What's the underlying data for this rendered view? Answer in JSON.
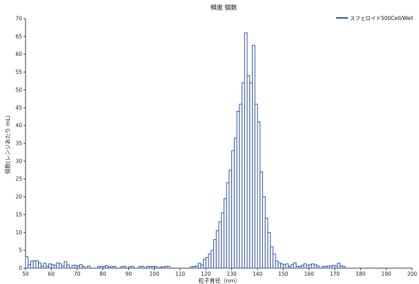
{
  "chart_data": {
    "type": "bar",
    "title": "頻度 個数",
    "xlabel": "粒子直径（nm）",
    "ylabel": "個数(レンジあたり mL)",
    "xlim": [
      50,
      200
    ],
    "ylim": [
      0,
      70
    ],
    "x_ticks": [
      50,
      60,
      70,
      80,
      90,
      100,
      110,
      120,
      130,
      140,
      150,
      160,
      170,
      180,
      190,
      200
    ],
    "y_ticks": [
      0,
      5,
      10,
      15,
      20,
      25,
      30,
      35,
      40,
      45,
      50,
      55,
      60,
      65,
      70
    ],
    "grid": false,
    "legend_position": "top-right",
    "bin_width": 1,
    "series": [
      {
        "name": "スフェロイド500Cell/Well",
        "color": "#2d4f9e",
        "x": [
          50,
          51,
          52,
          53,
          54,
          55,
          56,
          57,
          58,
          59,
          60,
          61,
          62,
          63,
          64,
          65,
          66,
          68,
          69,
          70,
          71,
          72,
          74,
          78,
          79,
          80,
          81,
          82,
          83,
          84,
          87,
          88,
          90,
          91,
          94,
          95,
          97,
          98,
          99,
          100,
          102,
          103,
          104,
          105,
          114,
          115,
          116,
          117,
          118,
          119,
          120,
          121,
          122,
          123,
          124,
          125,
          126,
          127,
          128,
          129,
          130,
          131,
          132,
          133,
          134,
          135,
          136,
          137,
          138,
          139,
          140,
          141,
          142,
          143,
          144,
          145,
          146,
          147,
          148,
          149,
          150,
          151,
          152,
          153,
          154,
          155,
          156,
          157,
          158,
          159,
          160,
          161,
          162,
          163,
          165,
          166,
          167,
          168,
          169,
          170,
          171,
          172,
          173
        ],
        "values": [
          3.2,
          1.0,
          2.0,
          2.0,
          2.1,
          1.5,
          0.6,
          1.4,
          0.5,
          1.2,
          1.0,
          0.8,
          1.5,
          1.2,
          0.6,
          1.8,
          0.9,
          0.8,
          0.8,
          0.6,
          1.0,
          0.5,
          0.6,
          0.5,
          0.5,
          0.5,
          0.7,
          0.4,
          0.4,
          0.5,
          0.5,
          0.5,
          0.4,
          0.5,
          0.5,
          0.5,
          0.5,
          0.5,
          0.5,
          0.5,
          0.3,
          0.4,
          0.5,
          0.5,
          0.4,
          0.5,
          0.6,
          1.4,
          0.9,
          2.5,
          3.0,
          4.0,
          5.0,
          8.0,
          10.5,
          13.0,
          15.5,
          19.5,
          24.0,
          27.5,
          33.0,
          36.5,
          44.0,
          46.0,
          52.0,
          66.0,
          54.0,
          52.0,
          62.5,
          46.0,
          41.0,
          27.0,
          20.0,
          14.0,
          10.0,
          6.0,
          4.0,
          2.0,
          1.5,
          1.2,
          1.0,
          1.2,
          0.5,
          1.0,
          1.5,
          0.5,
          0.5,
          0.8,
          1.2,
          0.8,
          1.0,
          1.2,
          1.0,
          0.6,
          0.5,
          0.5,
          0.6,
          0.6,
          0.8,
          0.6,
          1.4,
          0.6,
          0.5
        ]
      }
    ]
  }
}
